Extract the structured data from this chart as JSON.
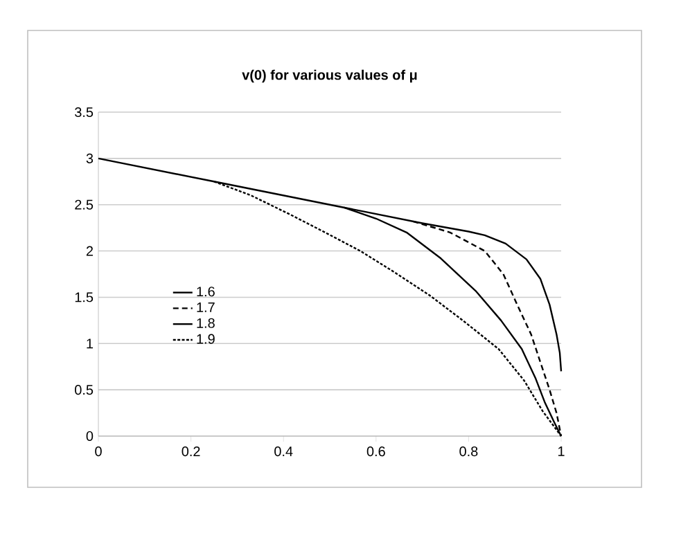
{
  "chart_data": {
    "type": "line",
    "title": "v(0) for various values of μ",
    "xlim": [
      0,
      1
    ],
    "ylim": [
      0,
      3.5
    ],
    "xticks": [
      0,
      0.2,
      0.4,
      0.6,
      0.8,
      1
    ],
    "yticks": [
      0,
      0.5,
      1,
      1.5,
      2,
      2.5,
      3,
      3.5
    ],
    "grid": "y",
    "legend": "left",
    "marker": "none",
    "series": [
      {
        "name": "1.6",
        "color": "#000000",
        "line_style": "solid",
        "x": [
          0,
          0.25,
          0.53,
          0.7,
          0.8,
          0.835,
          0.88,
          0.925,
          0.955,
          0.975,
          0.99,
          0.997,
          1
        ],
        "values": [
          3,
          2.75,
          2.47,
          2.3,
          2.21,
          2.17,
          2.08,
          1.91,
          1.7,
          1.42,
          1.1,
          0.9,
          0.7
        ]
      },
      {
        "name": "1.7",
        "color": "#000000",
        "line_style": "dashed",
        "x": [
          0.68,
          0.76,
          0.835,
          0.875,
          0.905,
          0.935,
          0.955,
          0.975,
          0.99,
          1
        ],
        "values": [
          2.32,
          2.2,
          2.0,
          1.75,
          1.42,
          1.1,
          0.8,
          0.5,
          0.25,
          0
        ]
      },
      {
        "name": "1.8",
        "color": "#000000",
        "line_style": "solid",
        "x": [
          0.53,
          0.6,
          0.666,
          0.74,
          0.815,
          0.87,
          0.915,
          0.945,
          0.965,
          0.985,
          1
        ],
        "values": [
          2.47,
          2.35,
          2.2,
          1.92,
          1.57,
          1.25,
          0.94,
          0.62,
          0.36,
          0.15,
          0
        ]
      },
      {
        "name": "1.9",
        "color": "#000000",
        "line_style": "dotted",
        "x": [
          0.25,
          0.33,
          0.416,
          0.49,
          0.566,
          0.64,
          0.716,
          0.79,
          0.865,
          0.92,
          0.96,
          1
        ],
        "values": [
          2.75,
          2.6,
          2.39,
          2.2,
          2.0,
          1.77,
          1.52,
          1.24,
          0.94,
          0.6,
          0.27,
          0
        ]
      }
    ]
  }
}
